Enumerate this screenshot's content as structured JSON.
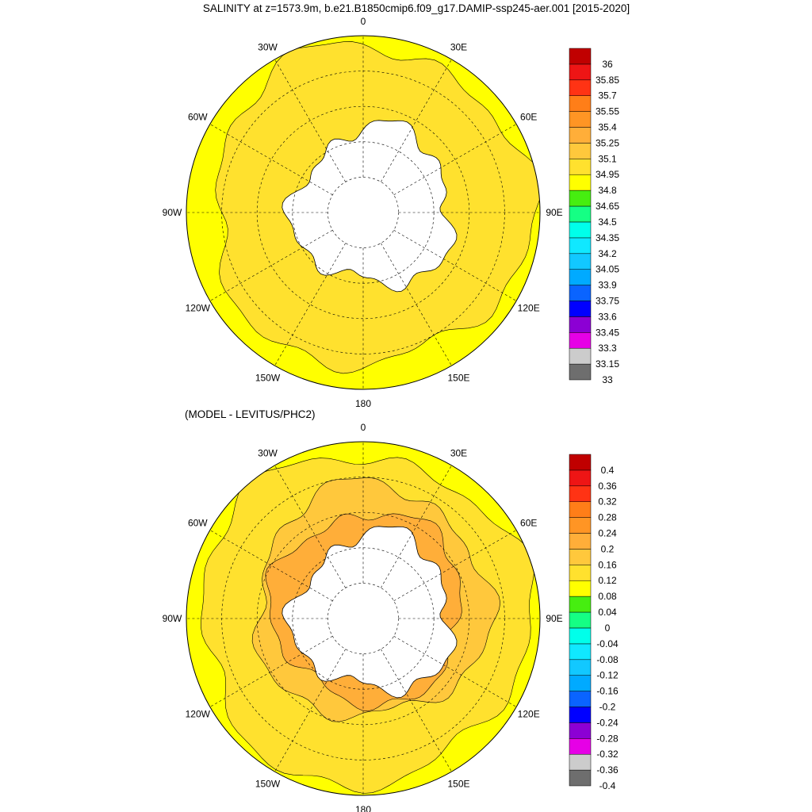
{
  "figure": {
    "title": "SALINITY at z=1573.9m, b.e21.B1850cmip6.f09_g17.DAMIP-ssp245-aer.001 [2015-2020]",
    "subtitle": "(MODEL - LEVITUS/PHC2)"
  },
  "colors": {
    "land": "#ffffff",
    "coast": "#000000",
    "grid": "#000000"
  },
  "chart_data": [
    {
      "type": "heatmap",
      "projection": "south-polar-stereographic",
      "variable": "SALINITY",
      "depth": "1573.9m",
      "period": "2015-2020",
      "longitude_labels": [
        {
          "lon": 0,
          "text": "0"
        },
        {
          "lon": 30,
          "text": "30E"
        },
        {
          "lon": 60,
          "text": "60E"
        },
        {
          "lon": 90,
          "text": "90E"
        },
        {
          "lon": 120,
          "text": "120E"
        },
        {
          "lon": 150,
          "text": "150E"
        },
        {
          "lon": 180,
          "text": "180"
        },
        {
          "lon": -150,
          "text": "150W"
        },
        {
          "lon": -120,
          "text": "120W"
        },
        {
          "lon": -90,
          "text": "90W"
        },
        {
          "lon": -60,
          "text": "60W"
        },
        {
          "lon": -30,
          "text": "30W"
        }
      ],
      "latitude_circles": [
        -80,
        -70,
        -60,
        -50
      ],
      "color_levels": [
        "33",
        "33.15",
        "33.3",
        "33.45",
        "33.6",
        "33.75",
        "33.9",
        "34.05",
        "34.2",
        "34.35",
        "34.5",
        "34.65",
        "34.8",
        "34.95",
        "35.1",
        "35.25",
        "35.4",
        "35.55",
        "35.7",
        "35.85",
        "36"
      ],
      "colors": [
        "#6e6e6e",
        "#cccccc",
        "#e600e6",
        "#8c00d4",
        "#0000ff",
        "#0a64ff",
        "#00aaff",
        "#12c8ff",
        "#10e8ff",
        "#00ffea",
        "#15ff84",
        "#46ee10",
        "#ffff00",
        "#ffe12e",
        "#ffc83c",
        "#ffae39",
        "#ff9524",
        "#ff7e18",
        "#ff3314",
        "#ee1515",
        "#c00000"
      ],
      "field_classes": {
        "interior": "34.95-35.1",
        "outer_ring": "34.8-34.95"
      }
    },
    {
      "type": "heatmap",
      "projection": "south-polar-stereographic",
      "variable": "MODEL - LEVITUS/PHC2",
      "longitude_labels": [
        {
          "lon": 0,
          "text": "0"
        },
        {
          "lon": 30,
          "text": "30E"
        },
        {
          "lon": 60,
          "text": "60E"
        },
        {
          "lon": 90,
          "text": "90E"
        },
        {
          "lon": 120,
          "text": "120E"
        },
        {
          "lon": 150,
          "text": "150E"
        },
        {
          "lon": 180,
          "text": "180"
        },
        {
          "lon": -150,
          "text": "150W"
        },
        {
          "lon": -120,
          "text": "120W"
        },
        {
          "lon": -90,
          "text": "90W"
        },
        {
          "lon": -60,
          "text": "60W"
        },
        {
          "lon": -30,
          "text": "30W"
        }
      ],
      "latitude_circles": [
        -80,
        -70,
        -60,
        -50
      ],
      "color_levels": [
        "-0.4",
        "-0.36",
        "-0.32",
        "-0.28",
        "-0.24",
        "-0.2",
        "-0.16",
        "-0.12",
        "-0.08",
        "-0.04",
        "0",
        "0.04",
        "0.08",
        "0.12",
        "0.16",
        "0.2",
        "0.24",
        "0.28",
        "0.32",
        "0.36",
        "0.4"
      ],
      "colors": [
        "#6e6e6e",
        "#cccccc",
        "#e600e6",
        "#8c00d4",
        "#0000ff",
        "#0a64ff",
        "#00aaff",
        "#12c8ff",
        "#10e8ff",
        "#00ffea",
        "#15ff84",
        "#46ee10",
        "#ffff00",
        "#ffe12e",
        "#ffc83c",
        "#ffae39",
        "#ff9524",
        "#ff7e18",
        "#ff3314",
        "#ee1515",
        "#c00000"
      ],
      "field_classes": {
        "dominant": "0.12-0.16",
        "inner_ring": "0.16-0.2",
        "near_coast": "0.2-0.24",
        "outer_ring": "0.08-0.12"
      }
    }
  ]
}
